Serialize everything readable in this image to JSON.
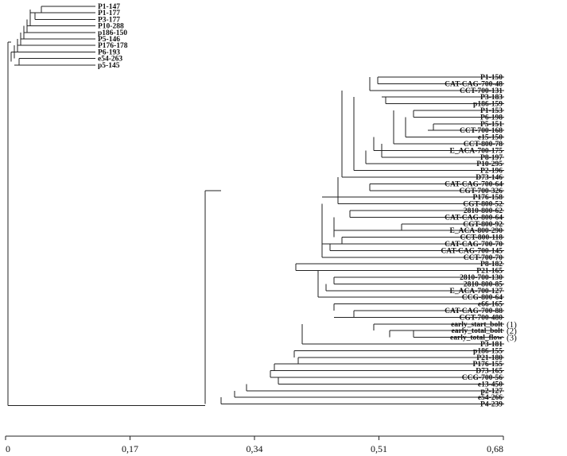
{
  "chart_data": {
    "type": "dendrogram",
    "x_axis": {
      "range": [
        0,
        0.68
      ],
      "ticks": [
        {
          "value": 0,
          "label": "0"
        },
        {
          "value": 0.17,
          "label": "0,17"
        },
        {
          "value": 0.34,
          "label": "0,34"
        },
        {
          "value": 0.51,
          "label": "0,51"
        },
        {
          "value": 0.68,
          "label": "0,68"
        }
      ]
    },
    "cluster_a_leaves": [
      "P1-147",
      "P1-177",
      "P3-177",
      "P10-288",
      "p186-150",
      "P5-146",
      "P176-178",
      "P6-193",
      "e54-263",
      "p5-145"
    ],
    "cluster_b_leaves": [
      "P1-150",
      "CAT-CAG-700-48",
      "CCT-700-131",
      "P3-183",
      "p186-159",
      "P1-153",
      "P6-198",
      "P5-151",
      "CCT-700-168",
      "e15-150",
      "CCT-800-78",
      "E_ACA-700-175",
      "P8-197",
      "P10-295",
      "P2-196",
      "D73-146",
      "CAT-CAG-700-64",
      "CGT-700-326",
      "P176-158",
      "CGT-800-52",
      "2810-800-62",
      "CAT-CAG-800-64",
      "CGT-800-92",
      "E_ACA-800-290",
      "CCT-800-118",
      "CAT-CAG-700-70",
      "CAT-CAG-700-145",
      "CCT-700-70",
      "P8-182",
      "P21-165",
      "2810-700-130",
      "2810-800-85",
      "E_ACA-700-127",
      "CCG-800-64",
      "e66-165",
      "CAT-CAG-700-88",
      "CGT-700-480",
      "early_start_bolt",
      "early_total_bolt",
      "early_total_flow",
      "P3-181",
      "p186-155",
      "P21-180",
      "P176-155",
      "D73-165",
      "CCG-700-56",
      "e13-450",
      "p2-127",
      "e54-266",
      "P4-239"
    ],
    "annotations": {
      "early_start_bolt": "(1)",
      "early_total_bolt": "(2)",
      "early_total_flow": "(3)"
    }
  }
}
